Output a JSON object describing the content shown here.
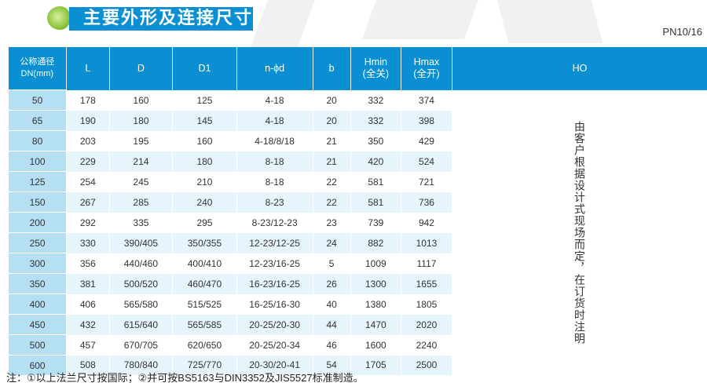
{
  "title": "主要外形及连接尺寸",
  "pressure": "PN10/16",
  "headers": [
    "公称通径\nDN(mm)",
    "L",
    "D",
    "D1",
    "n-ϕd",
    "b",
    "Hmin\n(全关)",
    "Hmax\n(全开)",
    "HO"
  ],
  "rows": [
    [
      "50",
      "178",
      "160",
      "125",
      "4-18",
      "20",
      "332",
      "374"
    ],
    [
      "65",
      "190",
      "180",
      "145",
      "4-18",
      "20",
      "332",
      "398"
    ],
    [
      "80",
      "203",
      "195",
      "160",
      "4-18/8/18",
      "21",
      "350",
      "429"
    ],
    [
      "100",
      "229",
      "214",
      "180",
      "8-18",
      "21",
      "420",
      "524"
    ],
    [
      "125",
      "254",
      "245",
      "210",
      "8-18",
      "22",
      "581",
      "721"
    ],
    [
      "150",
      "267",
      "285",
      "240",
      "8-23",
      "22",
      "581",
      "736"
    ],
    [
      "200",
      "292",
      "335",
      "295",
      "8-23/12-23",
      "23",
      "739",
      "942"
    ],
    [
      "250",
      "330",
      "390/405",
      "350/355",
      "12-23/12-25",
      "24",
      "882",
      "1013"
    ],
    [
      "300",
      "356",
      "440/460",
      "400/410",
      "12-23/16-25",
      "5",
      "1009",
      "1117"
    ],
    [
      "350",
      "381",
      "500/520",
      "460/470",
      "16-23/16-25",
      "26",
      "1300",
      "1655"
    ],
    [
      "400",
      "406",
      "565/580",
      "515/525",
      "16-25/16-30",
      "40",
      "1380",
      "1805"
    ],
    [
      "450",
      "432",
      "615/640",
      "565/585",
      "20-25/20-30",
      "44",
      "1470",
      "2020"
    ],
    [
      "500",
      "457",
      "670/705",
      "620/650",
      "20-25/20-34",
      "46",
      "1600",
      "2240"
    ],
    [
      "600",
      "508",
      "780/840",
      "725/770",
      "20-30/20-41",
      "54",
      "1705",
      "2500"
    ]
  ],
  "ho_note": "由客户根据设计式现场而定，在订货时注明",
  "footnote": "注：①以上法兰尺寸按国际；②并可按BS5163与DIN3352及JIS5527标准制造。",
  "colors": {
    "header": "#0a8fd3",
    "dn_column": "#b5dff3",
    "alt_row": "#e6f4fb",
    "title_ball": "#8cc43c"
  }
}
